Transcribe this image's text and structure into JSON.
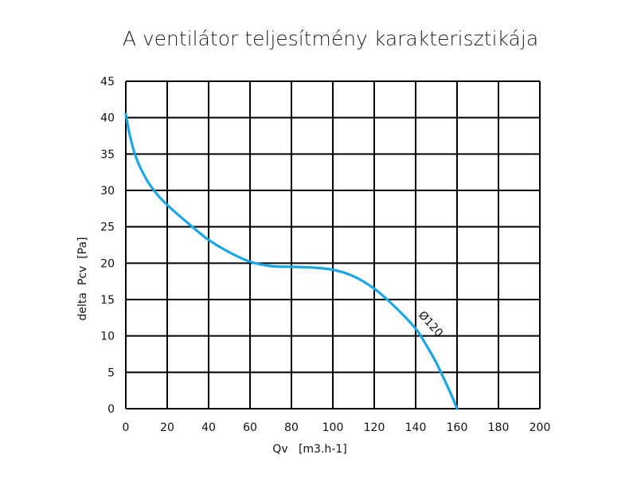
{
  "chart_data": {
    "type": "line",
    "title": "A ventilátor teljesítmény karakterisztikája",
    "xlabel": "Qv   [m3.h-1]",
    "ylabel": "delta  Pcv  [Pa]",
    "xlim": [
      0,
      200
    ],
    "ylim": [
      0,
      45
    ],
    "x_ticks": [
      0,
      20,
      40,
      60,
      80,
      100,
      120,
      140,
      160,
      180,
      200
    ],
    "y_ticks": [
      0,
      5,
      10,
      15,
      20,
      25,
      30,
      35,
      40,
      45
    ],
    "grid": true,
    "series": [
      {
        "name": "Ø120",
        "color": "#1aa6e4",
        "x": [
          0,
          2,
          5,
          10,
          15,
          20,
          30,
          40,
          50,
          60,
          70,
          80,
          90,
          100,
          110,
          120,
          130,
          140,
          145,
          150,
          155,
          158,
          160
        ],
        "y": [
          40.5,
          37.5,
          34.5,
          31.5,
          29.5,
          28,
          25.5,
          23.2,
          21.5,
          20.2,
          19.6,
          19.5,
          19.4,
          19.1,
          18.2,
          16.5,
          14,
          11,
          8.8,
          6.3,
          3.3,
          1.4,
          0
        ]
      }
    ]
  }
}
